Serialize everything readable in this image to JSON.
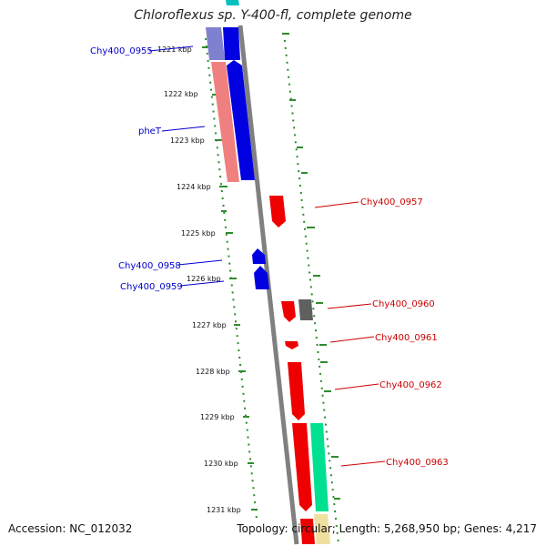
{
  "header": {
    "title": "Chloroflexus sp. Y-400-fl, complete genome"
  },
  "footer": {
    "accession": "Accession: NC_012032",
    "stats": "Topology: circular; Length: 5,268,950 bp; Genes: 4,217"
  },
  "colors": {
    "forward_cds": "#0000ff",
    "reverse_cds": "#ff0000",
    "backbone": "#808080",
    "gc_track": "#008000",
    "rna_light": "#f08080",
    "other_feature": "#606060",
    "cog_teal": "#00e090"
  },
  "map": {
    "units": "kbp",
    "ticks": [
      {
        "kbp": 1221,
        "label": "1221 kbp"
      },
      {
        "kbp": 1222,
        "label": "1222 kbp"
      },
      {
        "kbp": 1223,
        "label": "1223 kbp"
      },
      {
        "kbp": 1224,
        "label": "1224 kbp"
      },
      {
        "kbp": 1225,
        "label": "1225 kbp"
      },
      {
        "kbp": 1226,
        "label": "1226 kbp"
      },
      {
        "kbp": 1227,
        "label": "1227 kbp"
      },
      {
        "kbp": 1228,
        "label": "1228 kbp"
      },
      {
        "kbp": 1229,
        "label": "1229 kbp"
      },
      {
        "kbp": 1230,
        "label": "1230 kbp"
      },
      {
        "kbp": 1231,
        "label": "1231 kbp"
      }
    ],
    "genes": [
      {
        "label": "Chy400_0955",
        "strand": "forward",
        "start_kbp": 1220.7,
        "end_kbp": 1221.3
      },
      {
        "label": "pheT",
        "strand": "forward",
        "start_kbp": 1221.3,
        "end_kbp": 1223.9
      },
      {
        "label": "Chy400_0957",
        "strand": "reverse",
        "start_kbp": 1224.2,
        "end_kbp": 1224.9
      },
      {
        "label": "Chy400_0958",
        "strand": "forward",
        "start_kbp": 1225.3,
        "end_kbp": 1225.7
      },
      {
        "label": "Chy400_0959",
        "strand": "forward",
        "start_kbp": 1225.7,
        "end_kbp": 1226.3
      },
      {
        "label": "Chy400_0960",
        "strand": "reverse",
        "start_kbp": 1226.5,
        "end_kbp": 1227.0
      },
      {
        "label": "Chy400_0961",
        "strand": "reverse",
        "start_kbp": 1227.3,
        "end_kbp": 1227.5
      },
      {
        "label": "Chy400_0962",
        "strand": "reverse",
        "start_kbp": 1227.8,
        "end_kbp": 1229.0
      },
      {
        "label": "Chy400_0963",
        "strand": "reverse",
        "start_kbp": 1229.1,
        "end_kbp": 1231.1
      }
    ]
  }
}
